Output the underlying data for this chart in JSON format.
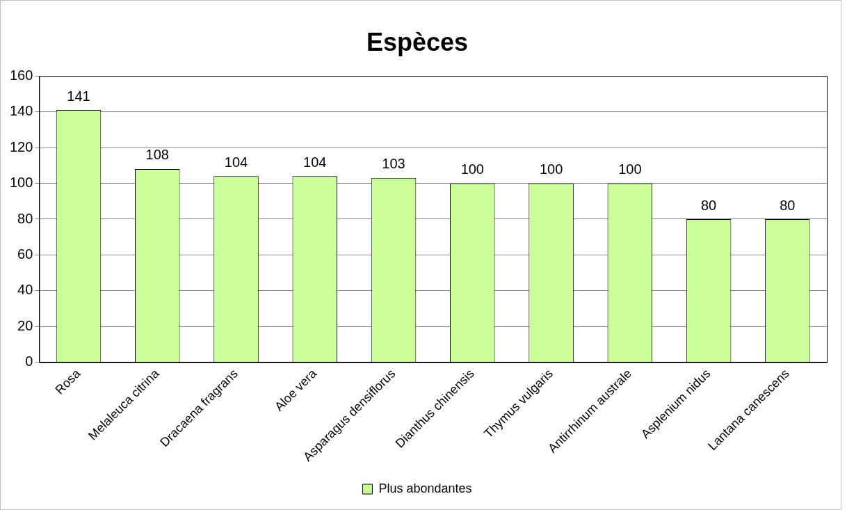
{
  "chart_data": {
    "type": "bar",
    "title": "Espèces",
    "categories": [
      "Rosa",
      "Melaleuca citrina",
      "Dracaena fragrans",
      "Aloe vera",
      "Asparagus densiflorus",
      "Dianthus chinensis",
      "Thymus vulgaris",
      "Antirrhinum australe",
      "Asplenium nidus",
      "Lantana canescens"
    ],
    "series": [
      {
        "name": "Plus abondantes",
        "color": "#ccff99",
        "values": [
          141,
          108,
          104,
          104,
          103,
          100,
          100,
          100,
          80,
          80
        ]
      }
    ],
    "ylim": [
      0,
      160
    ],
    "yticks": [
      0,
      20,
      40,
      60,
      80,
      100,
      120,
      140,
      160
    ],
    "grid": "y",
    "legend": "bottom",
    "data_labels": true
  }
}
